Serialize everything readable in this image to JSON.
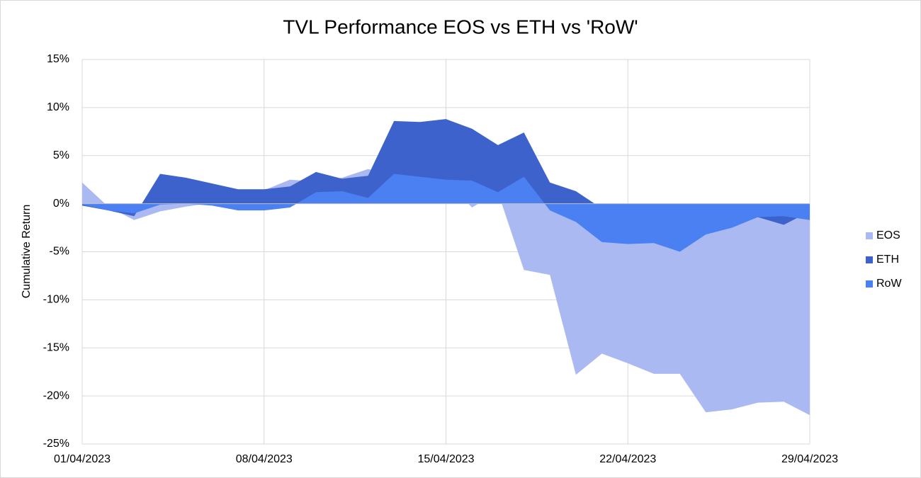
{
  "chart_data": {
    "type": "area",
    "title": "TVL Performance EOS vs ETH vs 'RoW'",
    "y_label": "Cumulative Return",
    "categories": [
      "01/04/2023",
      null,
      null,
      null,
      null,
      null,
      null,
      "08/04/2023",
      null,
      null,
      null,
      null,
      null,
      null,
      "15/04/2023",
      null,
      null,
      null,
      null,
      null,
      null,
      "22/04/2023",
      null,
      null,
      null,
      null,
      null,
      null,
      "29/04/2023"
    ],
    "series": [
      {
        "name": "EOS",
        "color": "#aab9f2",
        "values": [
          2.2,
          -0.3,
          -1.7,
          -0.8,
          -0.3,
          0.1,
          -0.2,
          1.4,
          2.5,
          2.3,
          2.7,
          3.6,
          3.0,
          2.8,
          2.5,
          -0.4,
          1.2,
          -6.9,
          -7.4,
          -17.8,
          -15.6,
          -16.6,
          -17.7,
          -17.7,
          -21.7,
          -21.4,
          -20.7,
          -20.6,
          -22.0
        ]
      },
      {
        "name": "ETH",
        "color": "#3d62cc",
        "values": [
          -0.2,
          -0.7,
          -1.3,
          3.1,
          2.7,
          2.1,
          1.5,
          1.5,
          1.8,
          3.3,
          2.6,
          2.9,
          8.6,
          8.5,
          8.8,
          7.8,
          6.1,
          7.4,
          2.2,
          1.3,
          -0.5,
          -0.8,
          -1.0,
          -1.2,
          -1.0,
          -1.2,
          -1.4,
          -2.2,
          -0.8
        ]
      },
      {
        "name": "RoW",
        "color": "#4a80f2",
        "values": [
          -0.1,
          -0.7,
          -1.0,
          -0.1,
          0.0,
          -0.2,
          -0.7,
          -0.7,
          -0.4,
          1.2,
          1.3,
          0.6,
          3.1,
          2.8,
          2.5,
          2.4,
          1.2,
          2.8,
          -0.7,
          -1.9,
          -4.0,
          -4.2,
          -4.1,
          -5.0,
          -3.2,
          -2.5,
          -1.4,
          -1.3,
          -1.7
        ]
      }
    ],
    "ylim": [
      -25,
      15
    ],
    "yticks": [
      {
        "value": -25,
        "label": "-25%"
      },
      {
        "value": -20,
        "label": "-20%"
      },
      {
        "value": -15,
        "label": "-15%"
      },
      {
        "value": -10,
        "label": "-10%"
      },
      {
        "value": -5,
        "label": "-5%"
      },
      {
        "value": 0,
        "label": "0%"
      },
      {
        "value": 5,
        "label": "5%"
      },
      {
        "value": 10,
        "label": "10%"
      },
      {
        "value": 15,
        "label": "15%"
      }
    ],
    "grid": true,
    "legend": "right"
  }
}
